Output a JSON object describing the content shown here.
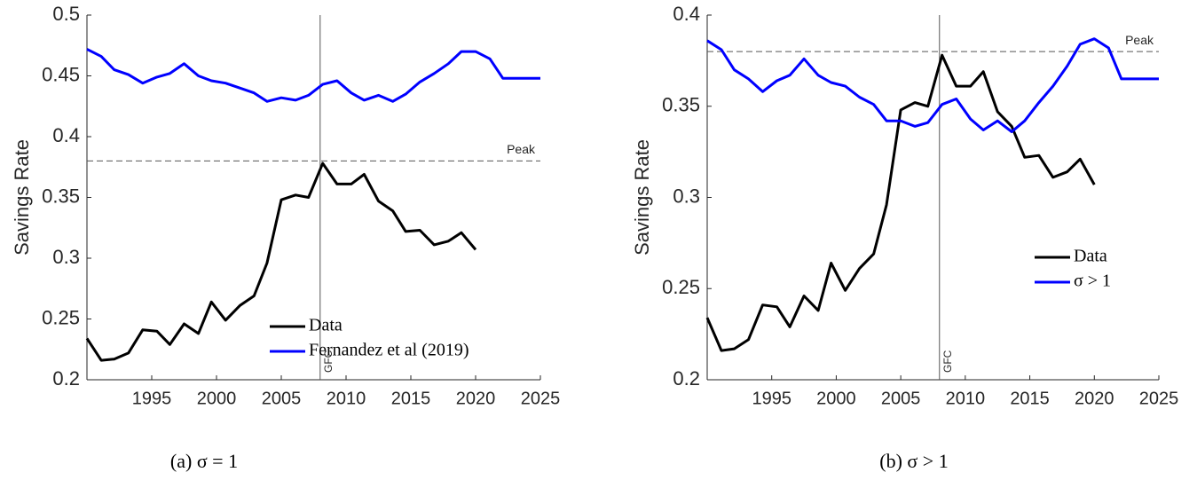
{
  "chart_data": [
    {
      "type": "line",
      "caption": "(a) σ = 1",
      "y_label": "Savings Rate",
      "xlim": [
        1990,
        2025
      ],
      "xticks": [
        1995,
        2000,
        2005,
        2010,
        2015,
        2020,
        2025
      ],
      "ylim": [
        0.2,
        0.5
      ],
      "yticks": [
        0.2,
        0.25,
        0.3,
        0.35,
        0.4,
        0.45,
        0.5
      ],
      "legend": "lower right",
      "reference_lines": [
        {
          "axis": "y",
          "value": 0.38,
          "label": "Peak"
        },
        {
          "axis": "x",
          "value": 2008,
          "label": "GFC"
        }
      ],
      "series": [
        {
          "name": "Data",
          "color": "#000000",
          "x": [
            1990,
            1991.1,
            1992.1,
            1993.2,
            1994.3,
            1995.4,
            1996.4,
            1997.5,
            1998.6,
            1999.6,
            2000.7,
            2001.8,
            2002.9,
            2003.9,
            2005.0,
            2006.1,
            2007.1,
            2008.2,
            2009.3,
            2010.4,
            2011.4,
            2012.5,
            2013.6,
            2014.6,
            2015.7,
            2016.8,
            2017.9,
            2018.9,
            2020.0
          ],
          "values": [
            0.234,
            0.216,
            0.217,
            0.222,
            0.241,
            0.24,
            0.229,
            0.246,
            0.238,
            0.264,
            0.249,
            0.261,
            0.269,
            0.296,
            0.348,
            0.352,
            0.35,
            0.378,
            0.361,
            0.361,
            0.369,
            0.347,
            0.339,
            0.322,
            0.323,
            0.311,
            0.314,
            0.321,
            0.307
          ]
        },
        {
          "name": "Fernandez et al (2019)",
          "color": "#0000ff",
          "x": [
            1990,
            1991.1,
            1992.1,
            1993.2,
            1994.3,
            1995.4,
            1996.4,
            1997.5,
            1998.6,
            1999.6,
            2000.7,
            2001.8,
            2002.9,
            2003.9,
            2005.0,
            2006.1,
            2007.1,
            2008.2,
            2009.3,
            2010.4,
            2011.4,
            2012.5,
            2013.6,
            2014.6,
            2015.7,
            2016.8,
            2017.9,
            2018.9,
            2020.0,
            2021.1,
            2022.1,
            2025
          ],
          "values": [
            0.472,
            0.466,
            0.455,
            0.451,
            0.444,
            0.449,
            0.452,
            0.46,
            0.45,
            0.446,
            0.444,
            0.44,
            0.436,
            0.429,
            0.432,
            0.43,
            0.434,
            0.443,
            0.446,
            0.436,
            0.43,
            0.434,
            0.429,
            0.435,
            0.445,
            0.452,
            0.46,
            0.47,
            0.47,
            0.464,
            0.448,
            0.448
          ]
        }
      ]
    },
    {
      "type": "line",
      "caption": "(b) σ > 1",
      "y_label": "Savings Rate",
      "xlim": [
        1990,
        2025
      ],
      "xticks": [
        1995,
        2000,
        2005,
        2010,
        2015,
        2020,
        2025
      ],
      "ylim": [
        0.2,
        0.4
      ],
      "yticks": [
        0.2,
        0.25,
        0.3,
        0.35,
        0.4
      ],
      "legend": "right",
      "reference_lines": [
        {
          "axis": "y",
          "value": 0.38,
          "label": "Peak"
        },
        {
          "axis": "x",
          "value": 2008,
          "label": "GFC"
        }
      ],
      "series": [
        {
          "name": "Data",
          "color": "#000000",
          "x": [
            1990,
            1991.1,
            1992.1,
            1993.2,
            1994.3,
            1995.4,
            1996.4,
            1997.5,
            1998.6,
            1999.6,
            2000.7,
            2001.8,
            2002.9,
            2003.9,
            2005.0,
            2006.1,
            2007.1,
            2008.2,
            2009.3,
            2010.4,
            2011.4,
            2012.5,
            2013.6,
            2014.6,
            2015.7,
            2016.8,
            2017.9,
            2018.9,
            2020.0
          ],
          "values": [
            0.234,
            0.216,
            0.217,
            0.222,
            0.241,
            0.24,
            0.229,
            0.246,
            0.238,
            0.264,
            0.249,
            0.261,
            0.269,
            0.296,
            0.348,
            0.352,
            0.35,
            0.378,
            0.361,
            0.361,
            0.369,
            0.347,
            0.339,
            0.322,
            0.323,
            0.311,
            0.314,
            0.321,
            0.307
          ]
        },
        {
          "name": "σ > 1",
          "color": "#0000ff",
          "x": [
            1990,
            1991.1,
            1992.1,
            1993.2,
            1994.3,
            1995.4,
            1996.4,
            1997.5,
            1998.6,
            1999.6,
            2000.7,
            2001.8,
            2002.9,
            2003.9,
            2005.0,
            2006.1,
            2007.1,
            2008.2,
            2009.3,
            2010.4,
            2011.4,
            2012.5,
            2013.6,
            2014.6,
            2015.7,
            2016.8,
            2017.9,
            2018.9,
            2020.0,
            2021.1,
            2022.1,
            2025
          ],
          "values": [
            0.386,
            0.381,
            0.37,
            0.365,
            0.358,
            0.364,
            0.367,
            0.376,
            0.367,
            0.363,
            0.361,
            0.355,
            0.351,
            0.342,
            0.342,
            0.339,
            0.341,
            0.351,
            0.354,
            0.343,
            0.337,
            0.342,
            0.336,
            0.342,
            0.352,
            0.361,
            0.372,
            0.384,
            0.387,
            0.382,
            0.365,
            0.365
          ]
        }
      ]
    }
  ]
}
